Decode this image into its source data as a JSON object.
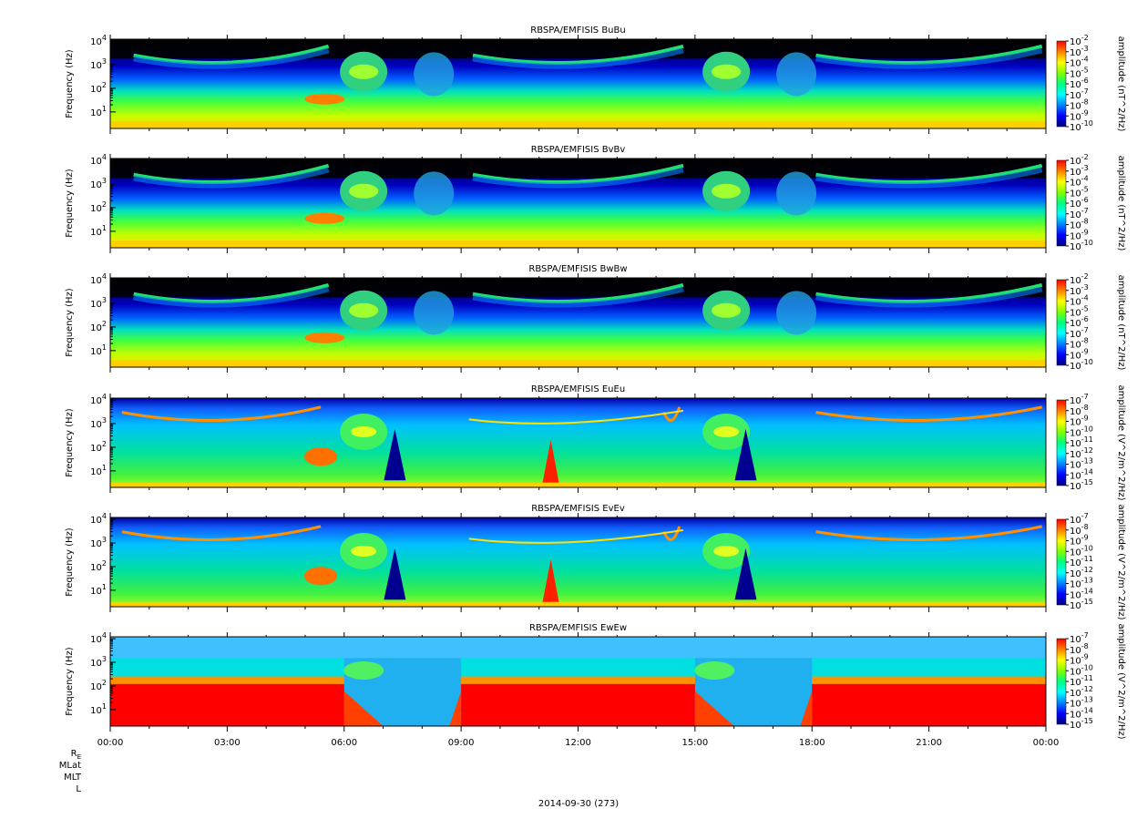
{
  "chart_data": {
    "type": "heatmap",
    "date_label": "2014-09-30 (273)",
    "x_tick_labels": [
      "00:00",
      "03:00",
      "06:00",
      "09:00",
      "12:00",
      "15:00",
      "18:00",
      "21:00",
      "00:00"
    ],
    "x_range_hours": [
      0,
      24
    ],
    "y_scale": "log",
    "y_range_hz": [
      2,
      12000
    ],
    "y_ticks": [
      {
        "base": "10",
        "exp": "1",
        "value": 10
      },
      {
        "base": "10",
        "exp": "2",
        "value": 100
      },
      {
        "base": "10",
        "exp": "3",
        "value": 1000
      },
      {
        "base": "10",
        "exp": "4",
        "value": 10000
      }
    ],
    "ylabel": "Frequency (Hz)",
    "ephemeris_labels": [
      {
        "main": "R",
        "sub": "E"
      },
      {
        "main": "MLat",
        "sub": ""
      },
      {
        "main": "MLT",
        "sub": ""
      },
      {
        "main": "L",
        "sub": ""
      }
    ],
    "colormap": [
      "#000080",
      "#0000ff",
      "#0080ff",
      "#00ffff",
      "#00ff80",
      "#80ff00",
      "#ffff00",
      "#ff8000",
      "#ff0000"
    ],
    "panels": [
      {
        "title": "RBSPA/EMFISIS  BuBu",
        "cbar_label": "amplitude (nT^2/Hz)",
        "cbar_exps": [
          "-2",
          "-3",
          "-4",
          "-5",
          "-6",
          "-7",
          "-8",
          "-9",
          "-10"
        ],
        "cbar_range_log": [
          -10,
          -2
        ],
        "type": "B",
        "features": {
          "plasma_band_hz": [
            20,
            200
          ],
          "low_freq_floor": "yellow",
          "hiss_blobs": [
            [
              6.5,
              500
            ],
            [
              15.8,
              500
            ]
          ],
          "chorus_band": "lower"
        }
      },
      {
        "title": "RBSPA/EMFISIS  BvBv",
        "cbar_label": "amplitude (nT^2/Hz)",
        "cbar_exps": [
          "-2",
          "-3",
          "-4",
          "-5",
          "-6",
          "-7",
          "-8",
          "-9",
          "-10"
        ],
        "cbar_range_log": [
          -10,
          -2
        ],
        "type": "B",
        "features": {
          "plasma_band_hz": [
            20,
            200
          ],
          "low_freq_floor": "yellow",
          "hiss_blobs": [
            [
              6.5,
              500
            ],
            [
              15.8,
              500
            ]
          ],
          "chorus_band": "lower"
        }
      },
      {
        "title": "RBSPA/EMFISIS  BwBw",
        "cbar_label": "amplitude (nT^2/Hz)",
        "cbar_exps": [
          "-2",
          "-3",
          "-4",
          "-5",
          "-6",
          "-7",
          "-8",
          "-9",
          "-10"
        ],
        "cbar_range_log": [
          -10,
          -2
        ],
        "type": "B",
        "features": {
          "plasma_band_hz": [
            20,
            200
          ],
          "low_freq_floor": "yellow",
          "hiss_blobs": [
            [
              6.5,
              500
            ],
            [
              15.8,
              500
            ]
          ],
          "chorus_band": "lower"
        }
      },
      {
        "title": "RBSPA/EMFISIS  EuEu",
        "cbar_label": "amplitude (V^2/m^2/Hz)",
        "cbar_exps": [
          "-7",
          "-8",
          "-9",
          "-10",
          "-11",
          "-12",
          "-13",
          "-14",
          "-15"
        ],
        "cbar_range_log": [
          -15,
          -7
        ],
        "type": "E",
        "features": {
          "uhr_line": "orange",
          "triangles_hours": [
            7.3,
            16.3
          ],
          "red_burst_hours": [
            11.3
          ]
        }
      },
      {
        "title": "RBSPA/EMFISIS  EvEv",
        "cbar_label": "amplitude (V^2/m^2/Hz)",
        "cbar_exps": [
          "-7",
          "-8",
          "-9",
          "-10",
          "-11",
          "-12",
          "-13",
          "-14",
          "-15"
        ],
        "cbar_range_log": [
          -15,
          -7
        ],
        "type": "E",
        "features": {
          "uhr_line": "orange",
          "triangles_hours": [
            7.3,
            16.3
          ],
          "red_burst_hours": [
            11.3
          ]
        }
      },
      {
        "title": "RBSPA/EMFISIS  EwEw",
        "cbar_label": "amplitude (V^2/m^2/Hz)",
        "cbar_exps": [
          "-7",
          "-8",
          "-9",
          "-10",
          "-11",
          "-12",
          "-13",
          "-14",
          "-15"
        ],
        "cbar_range_log": [
          -15,
          -7
        ],
        "type": "Ew",
        "features": {
          "red_low_band_hz": [
            2,
            200
          ],
          "quiet_intervals_hours": [
            [
              6,
              9
            ],
            [
              15,
              18
            ]
          ]
        }
      }
    ]
  }
}
